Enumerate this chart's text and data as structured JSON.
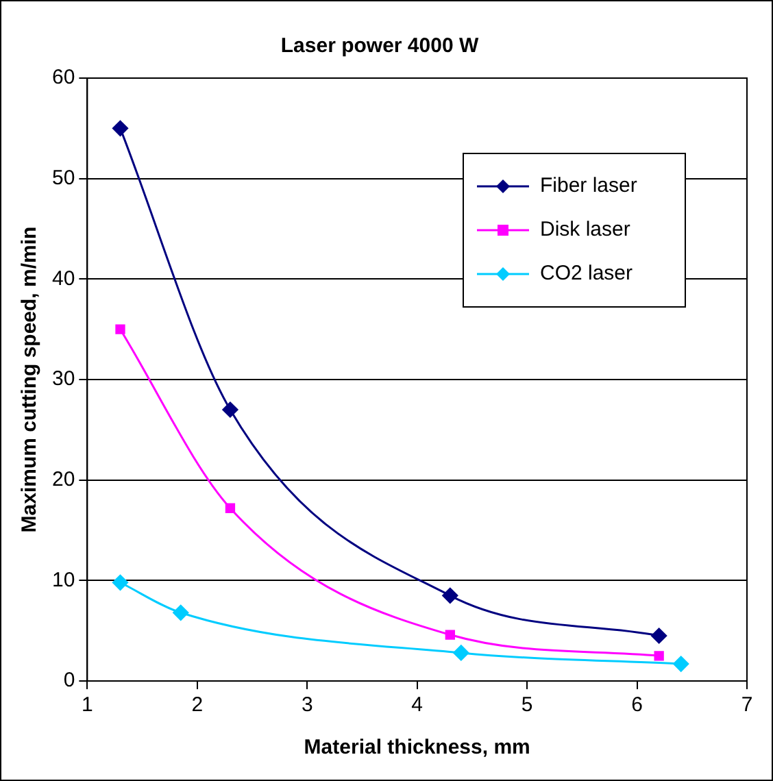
{
  "chart_data": {
    "type": "line",
    "title": "Laser power 4000 W",
    "xlabel": "Material thickness, mm",
    "ylabel": "Maximum cutting speed, m/min",
    "xlim": [
      1,
      7
    ],
    "xticks": [
      1,
      2,
      3,
      4,
      5,
      6,
      7
    ],
    "ylim": [
      0,
      60
    ],
    "yticks": [
      0,
      10,
      20,
      30,
      40,
      50,
      60
    ],
    "grid": "y",
    "legend": "top right",
    "line_style": "solid",
    "series": [
      {
        "name": "Fiber laser",
        "color": "#000080",
        "marker": "diamond",
        "x": [
          1.3,
          2.3,
          4.3,
          6.2
        ],
        "values": [
          55,
          27,
          8.5,
          4.5
        ]
      },
      {
        "name": "Disk laser",
        "color": "#ff00ff",
        "marker": "square",
        "x": [
          1.3,
          2.3,
          4.3,
          6.2
        ],
        "values": [
          35,
          17.2,
          4.6,
          2.5
        ]
      },
      {
        "name": "CO2 laser",
        "color": "#00ccff",
        "marker": "diamond",
        "x": [
          1.3,
          1.85,
          4.4,
          6.4
        ],
        "values": [
          9.8,
          6.8,
          2.8,
          1.7
        ]
      }
    ]
  }
}
